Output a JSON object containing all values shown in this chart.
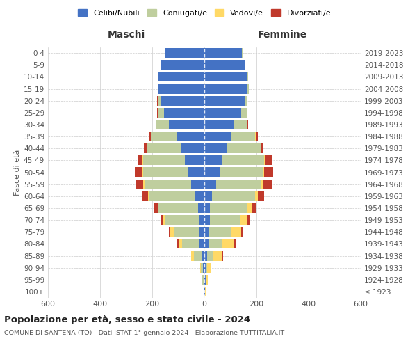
{
  "age_groups": [
    "100+",
    "95-99",
    "90-94",
    "85-89",
    "80-84",
    "75-79",
    "70-74",
    "65-69",
    "60-64",
    "55-59",
    "50-54",
    "45-49",
    "40-44",
    "35-39",
    "30-34",
    "25-29",
    "20-24",
    "15-19",
    "10-14",
    "5-9",
    "0-4"
  ],
  "birth_years": [
    "≤ 1923",
    "1924-1928",
    "1929-1933",
    "1934-1938",
    "1939-1943",
    "1944-1948",
    "1949-1953",
    "1954-1958",
    "1959-1963",
    "1964-1968",
    "1969-1973",
    "1974-1978",
    "1979-1983",
    "1984-1988",
    "1989-1993",
    "1994-1998",
    "1999-2003",
    "2004-2008",
    "2009-2013",
    "2014-2018",
    "2019-2023"
  ],
  "males": {
    "celibi": [
      2,
      4,
      5,
      10,
      20,
      18,
      20,
      25,
      35,
      50,
      65,
      75,
      90,
      105,
      135,
      155,
      165,
      175,
      175,
      165,
      150
    ],
    "coniugati": [
      1,
      3,
      8,
      30,
      65,
      100,
      130,
      150,
      175,
      180,
      170,
      160,
      130,
      100,
      50,
      25,
      15,
      5,
      2,
      1,
      1
    ],
    "vedovi": [
      0,
      1,
      4,
      10,
      15,
      12,
      8,
      5,
      5,
      4,
      3,
      2,
      1,
      1,
      0,
      0,
      0,
      0,
      0,
      0,
      0
    ],
    "divorziati": [
      0,
      0,
      0,
      0,
      3,
      5,
      10,
      15,
      25,
      30,
      30,
      20,
      10,
      5,
      3,
      2,
      1,
      0,
      0,
      0,
      0
    ]
  },
  "females": {
    "nubili": [
      2,
      5,
      5,
      10,
      15,
      15,
      20,
      20,
      30,
      45,
      60,
      70,
      85,
      100,
      115,
      140,
      155,
      165,
      165,
      155,
      145
    ],
    "coniugate": [
      1,
      2,
      5,
      25,
      55,
      85,
      115,
      145,
      165,
      170,
      165,
      160,
      130,
      95,
      50,
      25,
      10,
      5,
      2,
      1,
      1
    ],
    "vedove": [
      2,
      5,
      15,
      35,
      45,
      40,
      30,
      20,
      10,
      8,
      5,
      3,
      2,
      1,
      0,
      0,
      0,
      0,
      0,
      0,
      0
    ],
    "divorziate": [
      0,
      0,
      0,
      2,
      5,
      8,
      12,
      15,
      25,
      35,
      35,
      25,
      10,
      8,
      3,
      1,
      0,
      0,
      0,
      0,
      0
    ]
  },
  "colors": {
    "celibi": "#4472C4",
    "coniugati": "#BFCE9E",
    "vedovi": "#FFD966",
    "divorziati": "#C0392B"
  },
  "title": "Popolazione per età, sesso e stato civile - 2024",
  "subtitle": "COMUNE DI SANTENA (TO) - Dati ISTAT 1° gennaio 2024 - Elaborazione TUTTITALIA.IT",
  "xlabel_left": "Maschi",
  "xlabel_right": "Femmine",
  "ylabel_left": "Fasce di età",
  "xlim": 600,
  "legend_labels": [
    "Celibi/Nubili",
    "Coniugati/e",
    "Vedovi/e",
    "Divorziati/e"
  ],
  "bg_color": "#FFFFFF",
  "grid_color": "#CCCCCC"
}
